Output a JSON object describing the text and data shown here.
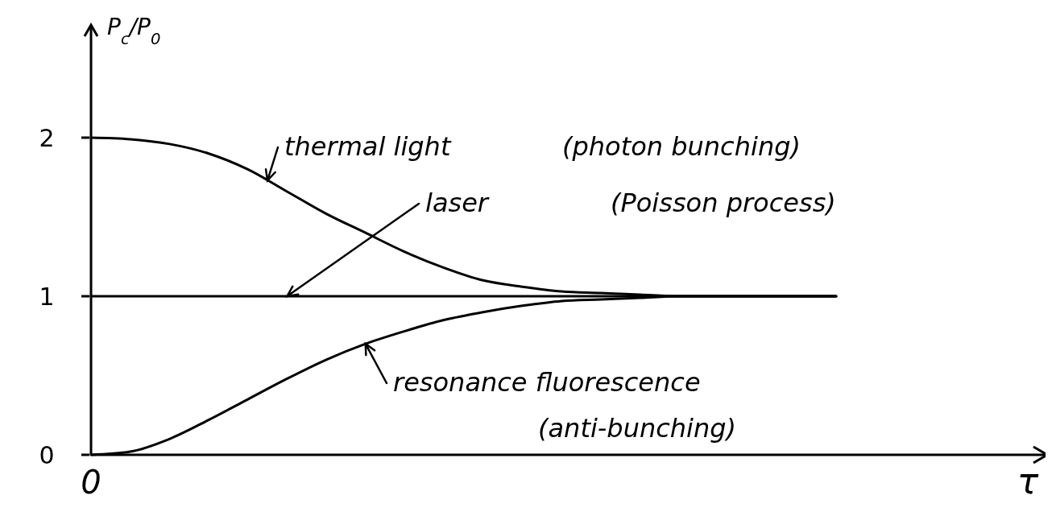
{
  "chart_data": {
    "type": "line",
    "ylabel": "P$_{c}$/P$_{0}$",
    "xlabel": "τ",
    "categories": [
      "0",
      null,
      null,
      null,
      null,
      null,
      null,
      null,
      null,
      null,
      null,
      null,
      null,
      null,
      null,
      null,
      null,
      null,
      null,
      null
    ],
    "series": [
      {
        "name": "thermal light",
        "color": "#000000",
        "values": [
          2.0,
          1.99,
          1.96,
          1.9,
          1.8,
          1.66,
          1.52,
          1.4,
          1.28,
          1.18,
          1.1,
          1.06,
          1.03,
          1.02,
          1.01,
          1.0,
          1.0,
          1.0,
          1.0,
          1.0
        ]
      },
      {
        "name": "laser",
        "color": "#000000",
        "values": [
          1,
          1,
          1,
          1,
          1,
          1,
          1,
          1,
          1,
          1,
          1,
          1,
          1,
          1,
          1,
          1,
          1,
          1,
          1,
          1
        ]
      },
      {
        "name": "resonance fluorescence",
        "color": "#000000",
        "values": [
          0,
          0.02,
          0.1,
          0.22,
          0.35,
          0.48,
          0.6,
          0.7,
          0.78,
          0.85,
          0.9,
          0.94,
          0.97,
          0.98,
          0.99,
          1.0,
          1.0,
          1.0,
          1.0,
          1.0
        ]
      }
    ],
    "annotations": [
      "(photon bunching)",
      "(Poisson process)",
      "(anti-bunching)"
    ],
    "ylim": [
      0,
      2
    ],
    "yticks": [
      0,
      1,
      2
    ],
    "grid": false,
    "marker": "none",
    "line_style": "solid"
  }
}
